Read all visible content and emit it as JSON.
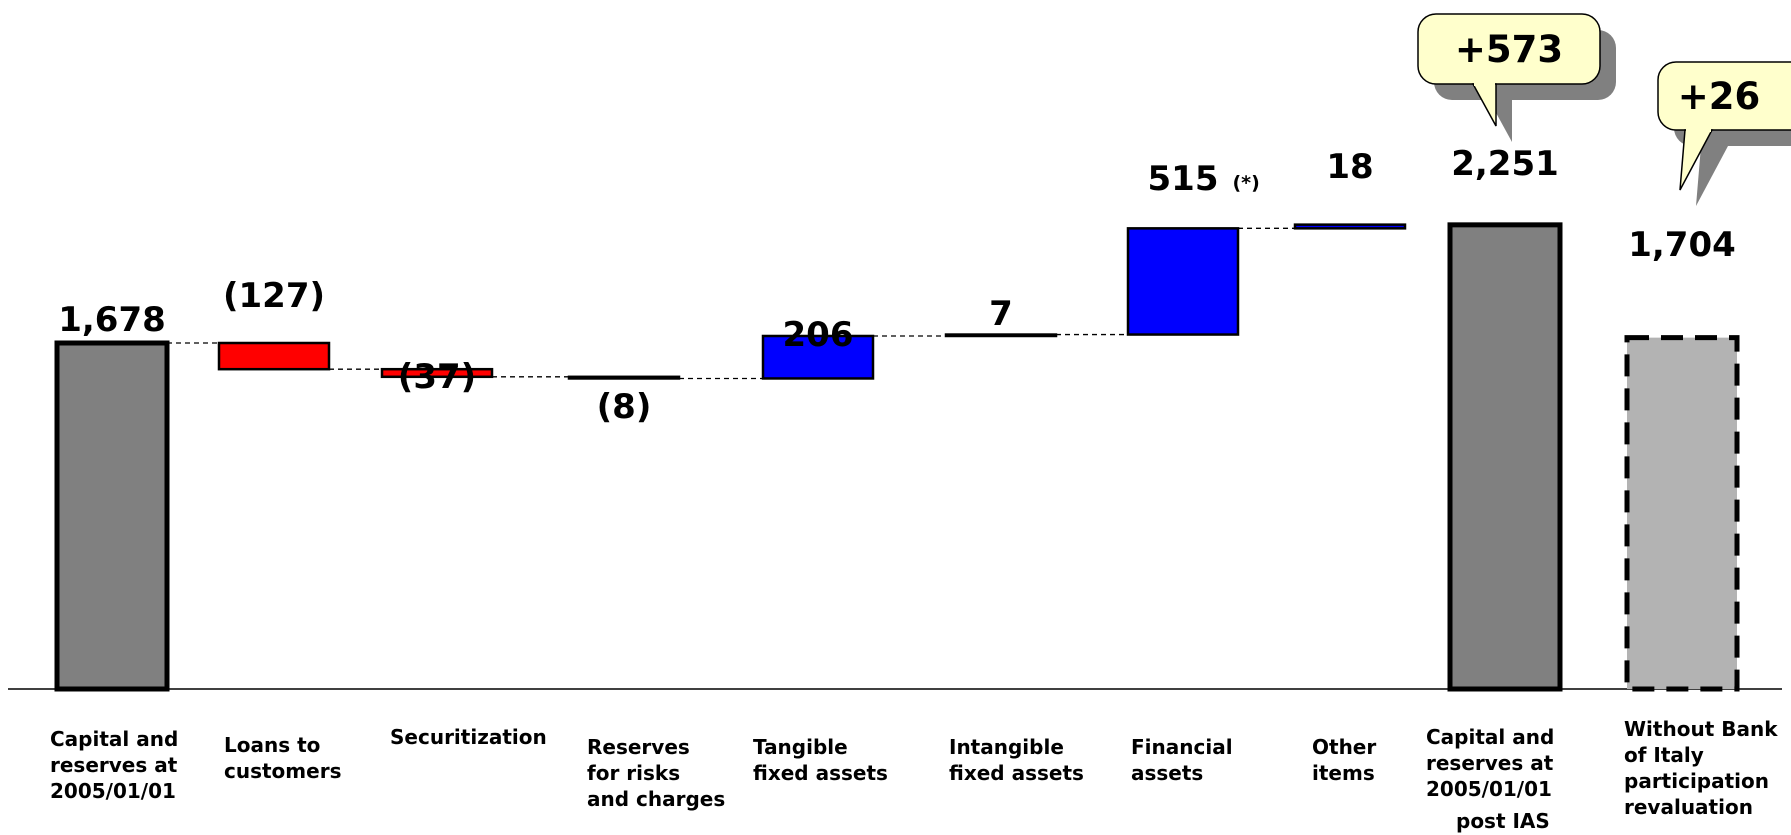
{
  "chart_data": {
    "type": "bar",
    "subtype": "waterfall",
    "categories": [
      "Capital and\nreserves at\n2005/01/01",
      "Loans to\ncustomers",
      "Securitization",
      "Reserves\nfor risks\nand charges",
      "Tangible\nfixed assets",
      "Intangible\nfixed assets",
      "Financial\nassets",
      "Other\nitems",
      "Capital and\nreserves at\n2005/01/01",
      "Without Bank\nof Italy\nparticipation\nrevaluation"
    ],
    "category_notes": [
      "",
      "",
      "",
      "",
      "",
      "",
      "",
      "",
      "post IAS",
      ""
    ],
    "values": [
      1678,
      -127,
      -37,
      -8,
      206,
      7,
      515,
      18,
      2251,
      1704
    ],
    "value_labels": [
      "1,678",
      "(127)",
      "(37)",
      "(8)",
      "206",
      "7",
      "515",
      "18",
      "2,251",
      "1,704"
    ],
    "value_label_notes": [
      "",
      "",
      "",
      "",
      "",
      "",
      "(*)",
      "",
      "",
      ""
    ],
    "bar_kinds": [
      "total",
      "delta",
      "delta",
      "delta",
      "delta",
      "delta",
      "delta",
      "delta",
      "total",
      "total-dashed"
    ],
    "callouts": [
      {
        "text": "+573",
        "category_index": 8
      },
      {
        "text": "+26",
        "category_index": 9
      }
    ],
    "ylim": [
      0,
      2251
    ],
    "grid": false,
    "colors": {
      "total": "#808080",
      "decrease": "#ff0000",
      "increase": "#0000ff",
      "dashed_total": "#b3b3b3",
      "callout": "#ffffcc",
      "callout_shadow": "#808080"
    }
  }
}
